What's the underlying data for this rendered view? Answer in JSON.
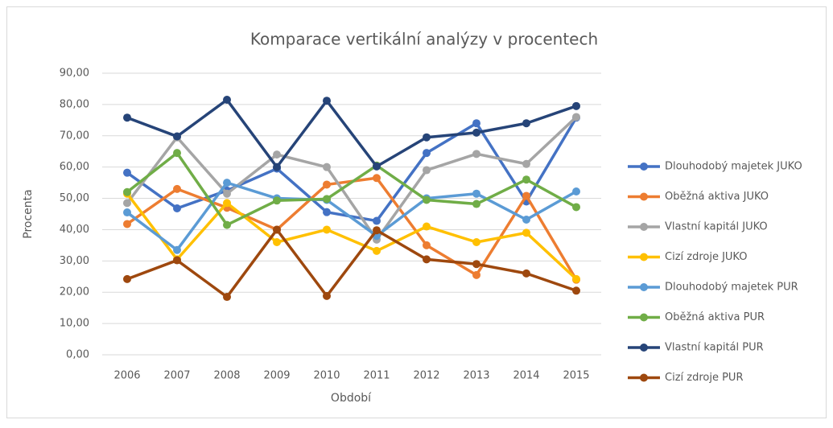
{
  "chart_data": {
    "type": "line",
    "title": "Komparace  vertikální analýzy v procentech",
    "x_label": "Období",
    "y_label": "Procenta",
    "categories": [
      "2006",
      "2007",
      "2008",
      "2009",
      "2010",
      "2011",
      "2012",
      "2013",
      "2014",
      "2015"
    ],
    "ylim": [
      0,
      90
    ],
    "yticks": [
      {
        "value": 0,
        "label": "0,00"
      },
      {
        "value": 10,
        "label": "10,00"
      },
      {
        "value": 20,
        "label": "20,00"
      },
      {
        "value": 30,
        "label": "30,00"
      },
      {
        "value": 40,
        "label": "40,00"
      },
      {
        "value": 50,
        "label": "50,00"
      },
      {
        "value": 60,
        "label": "60,00"
      },
      {
        "value": 70,
        "label": "70,00"
      },
      {
        "value": 80,
        "label": "80,00"
      },
      {
        "value": 90,
        "label": "90,00"
      }
    ],
    "grid": true,
    "legend": "right",
    "series": [
      {
        "name": "Dlouhodobý majetek JUKO",
        "color": "#4472c4",
        "values": [
          58.2,
          46.8,
          52.5,
          59.5,
          45.6,
          42.8,
          64.5,
          74.0,
          49.0,
          75.8
        ]
      },
      {
        "name": "Oběžná aktiva JUKO",
        "color": "#ed7d31",
        "values": [
          41.8,
          53.0,
          47.0,
          40.0,
          54.4,
          56.5,
          35.0,
          25.5,
          50.8,
          24.0
        ]
      },
      {
        "name": "Vlastní kapitál JUKO",
        "color": "#a5a5a5",
        "values": [
          48.5,
          69.5,
          51.5,
          64.0,
          60.0,
          36.8,
          59.0,
          64.2,
          61.0,
          76.0
        ]
      },
      {
        "name": "Cizí zdroje JUKO",
        "color": "#ffc000",
        "values": [
          51.5,
          30.5,
          48.5,
          36.0,
          40.0,
          33.2,
          41.0,
          36.0,
          39.0,
          24.2
        ]
      },
      {
        "name": "Dlouhodobý majetek PUR",
        "color": "#5b9bd5",
        "values": [
          45.5,
          33.5,
          55.0,
          50.0,
          49.5,
          38.0,
          50.0,
          51.5,
          43.2,
          52.2
        ]
      },
      {
        "name": "Oběžná aktiva PUR",
        "color": "#70ad47",
        "values": [
          52.0,
          64.5,
          41.5,
          49.3,
          49.8,
          60.5,
          49.5,
          48.2,
          56.0,
          47.2
        ]
      },
      {
        "name": "Vlastní kapitál PUR",
        "color": "#264478",
        "values": [
          75.8,
          69.8,
          81.5,
          60.0,
          81.2,
          60.2,
          69.5,
          71.0,
          74.0,
          79.5
        ]
      },
      {
        "name": "Cizí zdroje PUR",
        "color": "#9e480e",
        "values": [
          24.2,
          30.2,
          18.5,
          40.0,
          18.8,
          39.8,
          30.5,
          29.0,
          26.0,
          20.5
        ]
      }
    ]
  }
}
